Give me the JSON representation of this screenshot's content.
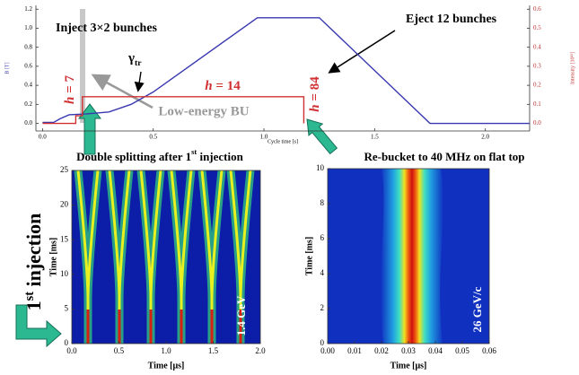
{
  "chart_data": [
    {
      "type": "line",
      "xlabel": "Cycle time [s]",
      "ylabel": "B [T]",
      "y2label": "Intensity [10¹³]",
      "xlim": [
        -0.03,
        2.2
      ],
      "ylim": [
        -0.08,
        1.24
      ],
      "y2lim": [
        -0.04,
        0.62
      ],
      "xticks": [
        {
          "value": 0,
          "label": "0.0"
        },
        {
          "value": 0.5,
          "label": "0.5"
        },
        {
          "value": 1,
          "label": "1.0"
        },
        {
          "value": 1.5,
          "label": "1.5"
        },
        {
          "value": 2,
          "label": "2.0"
        }
      ],
      "yticks": [
        {
          "value": 0,
          "label": "0.0"
        },
        {
          "value": 0.2,
          "label": "0.2"
        },
        {
          "value": 0.4,
          "label": "0.4"
        },
        {
          "value": 0.6,
          "label": "0.6"
        },
        {
          "value": 0.8,
          "label": "0.8"
        },
        {
          "value": 1,
          "label": "1.0"
        },
        {
          "value": 1.2,
          "label": "1.2"
        }
      ],
      "y2ticks": [
        {
          "value": 0,
          "label": "0.0"
        },
        {
          "value": 0.1,
          "label": "0.1"
        },
        {
          "value": 0.2,
          "label": "0.2"
        },
        {
          "value": 0.3,
          "label": "0.3"
        },
        {
          "value": 0.4,
          "label": "0.4"
        },
        {
          "value": 0.5,
          "label": "0.5"
        },
        {
          "value": 0.6,
          "label": "0.6"
        }
      ],
      "series": [
        {
          "color": "#3838b0",
          "x": [
            0,
            0.05,
            0.08,
            0.12,
            0.2,
            0.3,
            0.4,
            0.5,
            0.97,
            1.25,
            1.75,
            2.2
          ],
          "values": [
            0.01,
            0.01,
            0.05,
            0.09,
            0.1,
            0.12,
            0.2,
            0.33,
            1.11,
            1.11,
            0,
            0
          ]
        },
        {
          "color": "#d03030",
          "axis": "y2",
          "x": [
            0,
            0.15,
            0.15,
            0.18,
            0.18,
            1.18,
            1.18
          ],
          "values": [
            0,
            0,
            0.04,
            0.04,
            0.14,
            0.14,
            0
          ]
        }
      ],
      "annotations": [
        {
          "text": "Inject 3×2 bunches"
        },
        {
          "text": "Eject 12 bunches"
        },
        {
          "parts": [
            "γ",
            {
              "sub": "tr"
            }
          ]
        },
        {
          "parts": [
            {
              "em": "h"
            },
            " = 7"
          ]
        },
        {
          "parts": [
            {
              "em": "h"
            },
            " = 14"
          ]
        },
        {
          "parts": [
            {
              "em": "h"
            },
            " = 84"
          ]
        },
        {
          "text": "Low-energy BU"
        }
      ]
    },
    {
      "type": "heatmap",
      "title": [
        "Double splitting after 1",
        {
          "sup": "st"
        },
        " injection"
      ],
      "xlabel": "Time [μs]",
      "ylabel": "Time [ms]",
      "xlim": [
        0,
        2
      ],
      "ylim": [
        0,
        25
      ],
      "xticks": [
        {
          "value": 0,
          "label": "0.0"
        },
        {
          "value": 0.5,
          "label": "0.5"
        },
        {
          "value": 1,
          "label": "1.0"
        },
        {
          "value": 1.5,
          "label": "1.5"
        },
        {
          "value": 2,
          "label": "2.0"
        }
      ],
      "yticks": [
        0,
        5,
        10,
        15,
        20,
        25
      ],
      "annotations": [
        {
          "text": "1.4 GeV"
        },
        {
          "parts": [
            "1",
            {
              "sup": "st"
            },
            " injection"
          ]
        }
      ]
    },
    {
      "type": "heatmap",
      "title": [
        "Re-bucket to 40 MHz on flat top"
      ],
      "xlabel": "Time [μs]",
      "ylabel": "Time [ms]",
      "xlim": [
        0,
        0.06
      ],
      "ylim": [
        0,
        10
      ],
      "xticks": [
        {
          "value": 0,
          "label": "0.00"
        },
        {
          "value": 0.01,
          "label": "0.01"
        },
        {
          "value": 0.02,
          "label": "0.02"
        },
        {
          "value": 0.03,
          "label": "0.03"
        },
        {
          "value": 0.04,
          "label": "0.04"
        },
        {
          "value": 0.05,
          "label": "0.05"
        },
        {
          "value": 0.06,
          "label": "0.06"
        }
      ],
      "yticks": [
        0,
        2,
        4,
        6,
        8,
        10
      ],
      "annotations": [
        {
          "text": "26 GeV/c"
        }
      ]
    }
  ]
}
